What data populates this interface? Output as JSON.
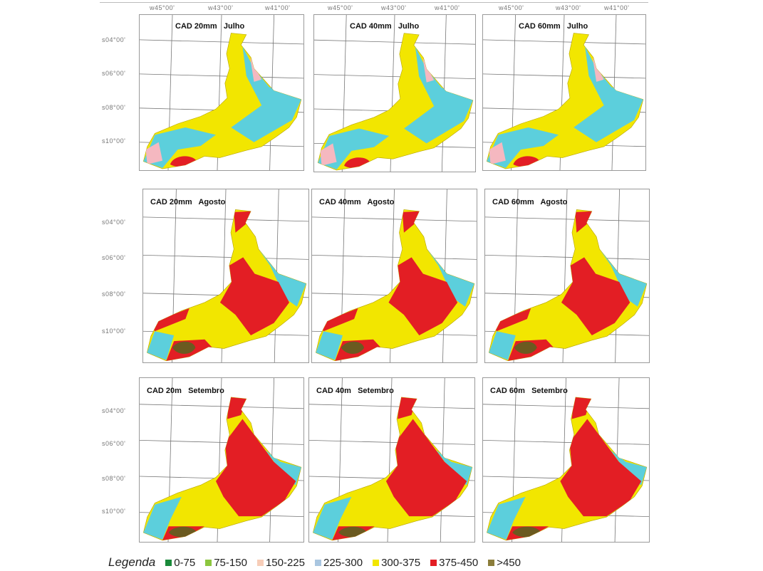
{
  "axes": {
    "lon_labels": [
      "w45°00'",
      "w43°00'",
      "w41°00'"
    ],
    "lat_labels": [
      "s04°00'",
      "s06°00'",
      "s08°00'",
      "s10°00'"
    ]
  },
  "panels": [
    {
      "title": "CAD 20mm   Julho",
      "month": "julho"
    },
    {
      "title": "CAD 40mm   Julho",
      "month": "julho"
    },
    {
      "title": "CAD 60mm   Julho",
      "month": "julho"
    },
    {
      "title": "CAD 20mm   Agosto",
      "month": "agosto"
    },
    {
      "title": "CAD 40mm   Agosto",
      "month": "agosto"
    },
    {
      "title": "CAD 60mm   Agosto",
      "month": "agosto"
    },
    {
      "title": "CAD 20m   Setembro",
      "month": "setembro"
    },
    {
      "title": "CAD 40m   Setembro",
      "month": "setembro"
    },
    {
      "title": "CAD 60m   Setembro",
      "month": "setembro"
    }
  ],
  "legend": {
    "title": "Legenda",
    "items": [
      {
        "label": "0-75",
        "color": "#1a8a3a"
      },
      {
        "label": "75-150",
        "color": "#8cc63f"
      },
      {
        "label": "150-225",
        "color": "#f7cdb8"
      },
      {
        "label": "225-300",
        "color": "#a9c6e0"
      },
      {
        "label": "300-375",
        "color": "#f2e600"
      },
      {
        "label": "375-450",
        "color": "#e31e24"
      },
      {
        "label": ">450",
        "color": "#8b7d3a"
      }
    ]
  },
  "map_colors": {
    "yellow": "#f2e600",
    "cyan": "#5ccfdc",
    "red": "#e31e24",
    "pink": "#f5b8c0",
    "dark": "#6b5a20"
  }
}
